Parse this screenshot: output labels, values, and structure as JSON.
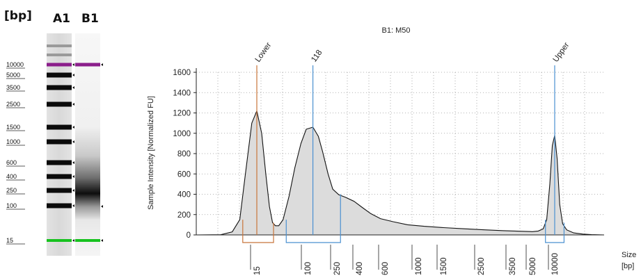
{
  "gel": {
    "unit_label": "[bp]",
    "lanes": [
      {
        "name": "A1",
        "role": "ladder"
      },
      {
        "name": "B1",
        "role": "sample"
      }
    ],
    "ladder_labels": [
      "10000",
      "5000",
      "3500",
      "2500",
      "1500",
      "1000",
      "600",
      "400",
      "250",
      "100",
      "15"
    ],
    "ladder_bp": [
      10000,
      5000,
      3500,
      2500,
      1500,
      1000,
      600,
      400,
      250,
      100,
      15
    ],
    "upper_marker_color": "#8b1e8b",
    "lower_marker_color": "#17c21f"
  },
  "chart_data": {
    "type": "area",
    "title": "B1: M50",
    "ylabel": "Sample Intensity [Normalized FU]",
    "xlabel": "Size [bp]",
    "xlabel_line1": "Size",
    "xlabel_line2": "[bp]",
    "ylim": [
      0,
      1600
    ],
    "y_ticks": [
      "0",
      "200",
      "400",
      "600",
      "800",
      "1000",
      "1200",
      "1400",
      "1600"
    ],
    "x_ticks": [
      "15",
      "100",
      "250",
      "400",
      "600",
      "1000",
      "1500",
      "2500",
      "3500",
      "5000",
      "10000"
    ],
    "grid": true,
    "fill_color": "#dcdcdc",
    "peaks": [
      {
        "label": "Lower",
        "size_bp": 15,
        "intensity": 1220,
        "color": "#c8743a"
      },
      {
        "label": "118",
        "size_bp": 118,
        "intensity": 1060,
        "color": "#4a90d0"
      },
      {
        "label": "Upper",
        "size_bp": 10000,
        "intensity": 980,
        "color": "#4a90d0"
      }
    ],
    "regions": [
      {
        "from_bp": 8,
        "to_bp": 28,
        "color": "#c8743a"
      },
      {
        "from_bp": 45,
        "to_bp": 270,
        "color": "#4a90d0"
      },
      {
        "from_bp": 7500,
        "to_bp": 13000,
        "color": "#4a90d0"
      }
    ],
    "trace": [
      [
        1,
        0
      ],
      [
        3,
        2
      ],
      [
        5,
        30
      ],
      [
        7,
        150
      ],
      [
        9,
        600
      ],
      [
        12,
        1100
      ],
      [
        15,
        1220
      ],
      [
        18,
        1000
      ],
      [
        21,
        600
      ],
      [
        24,
        280
      ],
      [
        27,
        120
      ],
      [
        30,
        90
      ],
      [
        34,
        90
      ],
      [
        40,
        150
      ],
      [
        50,
        380
      ],
      [
        62,
        660
      ],
      [
        78,
        900
      ],
      [
        95,
        1040
      ],
      [
        118,
        1060
      ],
      [
        140,
        970
      ],
      [
        160,
        820
      ],
      [
        190,
        600
      ],
      [
        220,
        450
      ],
      [
        260,
        395
      ],
      [
        300,
        370
      ],
      [
        360,
        330
      ],
      [
        420,
        270
      ],
      [
        480,
        210
      ],
      [
        560,
        160
      ],
      [
        680,
        130
      ],
      [
        850,
        100
      ],
      [
        1100,
        85
      ],
      [
        1500,
        72
      ],
      [
        2000,
        60
      ],
      [
        2600,
        50
      ],
      [
        3200,
        42
      ],
      [
        4000,
        36
      ],
      [
        5000,
        32
      ],
      [
        6000,
        38
      ],
      [
        7000,
        60
      ],
      [
        7800,
        150
      ],
      [
        8600,
        500
      ],
      [
        9300,
        880
      ],
      [
        10000,
        980
      ],
      [
        10700,
        750
      ],
      [
        11500,
        300
      ],
      [
        12500,
        110
      ],
      [
        14000,
        50
      ],
      [
        17000,
        20
      ],
      [
        22000,
        8
      ],
      [
        28000,
        3
      ],
      [
        40000,
        0
      ]
    ]
  }
}
